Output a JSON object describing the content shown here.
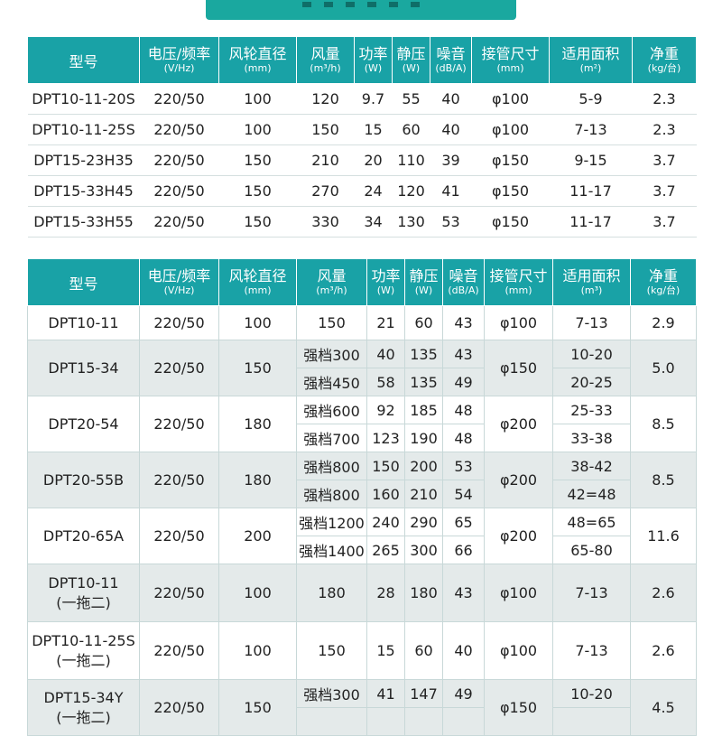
{
  "table1": {
    "headers": [
      {
        "main": "型号",
        "unit": ""
      },
      {
        "main": "电压/频率",
        "unit": "(V/Hz)"
      },
      {
        "main": "风轮直径",
        "unit": "(mm)"
      },
      {
        "main": "风量",
        "unit": "(m³/h)"
      },
      {
        "main": "功率",
        "unit": "(W)"
      },
      {
        "main": "静压",
        "unit": "(W)"
      },
      {
        "main": "噪音",
        "unit": "(dB/A)"
      },
      {
        "main": "接管尺寸",
        "unit": "(mm)"
      },
      {
        "main": "适用面积",
        "unit": "(m²)"
      },
      {
        "main": "净重",
        "unit": "(kg/台)"
      }
    ],
    "rows": [
      [
        "DPT10-11-20S",
        "220/50",
        "100",
        "120",
        "9.7",
        "55",
        "40",
        "φ100",
        "5-9",
        "2.3"
      ],
      [
        "DPT10-11-25S",
        "220/50",
        "100",
        "150",
        "15",
        "60",
        "40",
        "φ100",
        "7-13",
        "2.3"
      ],
      [
        "DPT15-23H35",
        "220/50",
        "150",
        "210",
        "20",
        "110",
        "39",
        "φ150",
        "9-15",
        "3.7"
      ],
      [
        "DPT15-33H45",
        "220/50",
        "150",
        "270",
        "24",
        "120",
        "41",
        "φ150",
        "11-17",
        "3.7"
      ],
      [
        "DPT15-33H55",
        "220/50",
        "150",
        "330",
        "34",
        "130",
        "53",
        "φ150",
        "11-17",
        "3.7"
      ]
    ]
  },
  "table2": {
    "headers": [
      {
        "main": "型号",
        "unit": ""
      },
      {
        "main": "电压/频率",
        "unit": "(V/Hz)"
      },
      {
        "main": "风轮直径",
        "unit": "(mm)"
      },
      {
        "main": "风量",
        "unit": "(m³/h)"
      },
      {
        "main": "功率",
        "unit": "(W)"
      },
      {
        "main": "静压",
        "unit": "(W)"
      },
      {
        "main": "噪音",
        "unit": "(dB/A)"
      },
      {
        "main": "接管尺寸",
        "unit": "(mm)"
      },
      {
        "main": "适用面积",
        "unit": "(m³)"
      },
      {
        "main": "净重",
        "unit": "(kg/台)"
      }
    ],
    "groups": [
      {
        "model": [
          "DPT10-11"
        ],
        "voltage": "220/50",
        "diameter": "100",
        "pipe": "φ100",
        "weight": "2.9",
        "rows": [
          {
            "airflow": "150",
            "power": "21",
            "pressure": "60",
            "noise": "43",
            "area": "7-13"
          }
        ]
      },
      {
        "model": [
          "DPT15-34"
        ],
        "voltage": "220/50",
        "diameter": "150",
        "pipe": "φ150",
        "weight": "5.0",
        "rows": [
          {
            "airflow": "强档300",
            "power": "40",
            "pressure": "135",
            "noise": "43",
            "area": "10-20"
          },
          {
            "airflow": "强档450",
            "power": "58",
            "pressure": "135",
            "noise": "49",
            "area": "20-25"
          }
        ]
      },
      {
        "model": [
          "DPT20-54"
        ],
        "voltage": "220/50",
        "diameter": "180",
        "pipe": "φ200",
        "weight": "8.5",
        "rows": [
          {
            "airflow": "强档600",
            "power": "92",
            "pressure": "185",
            "noise": "48",
            "area": "25-33"
          },
          {
            "airflow": "强档700",
            "power": "123",
            "pressure": "190",
            "noise": "48",
            "area": "33-38"
          }
        ]
      },
      {
        "model": [
          "DPT20-55B"
        ],
        "voltage": "220/50",
        "diameter": "180",
        "pipe": "φ200",
        "weight": "8.5",
        "rows": [
          {
            "airflow": "强档800",
            "power": "150",
            "pressure": "200",
            "noise": "53",
            "area": "38-42"
          },
          {
            "airflow": "强档800",
            "power": "160",
            "pressure": "210",
            "noise": "54",
            "area": "42=48"
          }
        ]
      },
      {
        "model": [
          "DPT20-65A"
        ],
        "voltage": "220/50",
        "diameter": "200",
        "pipe": "φ200",
        "weight": "11.6",
        "rows": [
          {
            "airflow": "强档1200",
            "power": "240",
            "pressure": "290",
            "noise": "65",
            "area": "48=65"
          },
          {
            "airflow": "强档1400",
            "power": "265",
            "pressure": "300",
            "noise": "66",
            "area": "65-80"
          }
        ]
      },
      {
        "model": [
          "DPT10-11",
          "(一拖二)"
        ],
        "voltage": "220/50",
        "diameter": "100",
        "pipe": "φ100",
        "weight": "2.6",
        "rows": [
          {
            "airflow": "180",
            "power": "28",
            "pressure": "180",
            "noise": "43",
            "area": "7-13"
          }
        ]
      },
      {
        "model": [
          "DPT10-11-25S",
          "(一拖二)"
        ],
        "voltage": "220/50",
        "diameter": "100",
        "pipe": "φ100",
        "weight": "2.6",
        "rows": [
          {
            "airflow": "150",
            "power": "15",
            "pressure": "60",
            "noise": "40",
            "area": "7-13"
          }
        ]
      },
      {
        "model": [
          "DPT15-34Y",
          "(一拖二)"
        ],
        "voltage": "220/50",
        "diameter": "150",
        "pipe": "φ150",
        "weight": "4.5",
        "rows": [
          {
            "airflow": "强档300",
            "power": "41",
            "pressure": "147",
            "noise": "49",
            "area": "10-20"
          },
          {
            "airflow": "",
            "power": "",
            "pressure": "",
            "noise": "",
            "area": ""
          }
        ]
      }
    ]
  }
}
